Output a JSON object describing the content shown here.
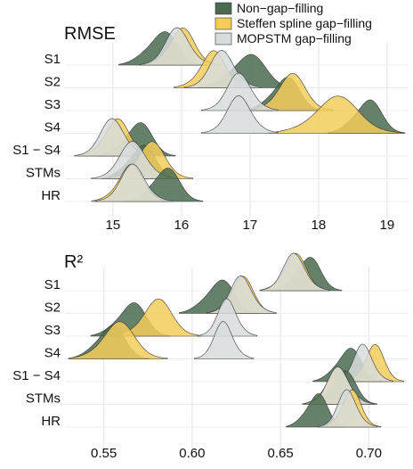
{
  "legend": {
    "placement": "top-right",
    "items": [
      {
        "label": "Non−gap−filling",
        "color": "#4a6b4f"
      },
      {
        "label": "Steffen spline gap−filling",
        "color": "#f3cc5c"
      },
      {
        "label": "MOPSTM gap−filling",
        "color": "#d7dcdc"
      }
    ]
  },
  "chart_data": [
    {
      "type": "ridgeline",
      "title": "RMSE",
      "categories": [
        "S1",
        "S2",
        "S3",
        "S4",
        "S1 − S4",
        "STMs",
        "HR"
      ],
      "xlim": [
        14.3,
        19.3
      ],
      "xticks": [
        15,
        16,
        17,
        18,
        19
      ],
      "xtick_labels": [
        "15",
        "16",
        "17",
        "18",
        "19"
      ],
      "grid": true,
      "series": [
        {
          "name": "Non−gap−filling",
          "color": "#4a6b4f",
          "modes": [
            15.7,
            16.95,
            17.5,
            18.7,
            15.35,
            15.4,
            15.75
          ],
          "spreads": [
            0.22,
            0.25,
            0.2,
            0.2,
            0.2,
            0.2,
            0.2
          ]
        },
        {
          "name": "Steffen spline gap−filling",
          "color": "#f3cc5c",
          "modes": [
            16.0,
            16.45,
            17.6,
            18.25,
            15.05,
            15.55,
            15.25
          ],
          "spreads": [
            0.2,
            0.2,
            0.22,
            0.35,
            0.2,
            0.22,
            0.2
          ]
        },
        {
          "name": "MOPSTM gap−filling",
          "color": "#d7dcdc",
          "modes": [
            15.95,
            16.6,
            16.85,
            16.85,
            15.0,
            15.3,
            15.3
          ],
          "spreads": [
            0.2,
            0.2,
            0.2,
            0.2,
            0.2,
            0.22,
            0.2
          ]
        }
      ]
    },
    {
      "type": "ridgeline",
      "title": "R²",
      "categories": [
        "S1",
        "S2",
        "S3",
        "S4",
        "S1 − S4",
        "STMs",
        "HR"
      ],
      "xlim": [
        0.528,
        0.722
      ],
      "xticks": [
        0.55,
        0.6,
        0.65,
        0.7
      ],
      "xtick_labels": [
        "0.55",
        "0.60",
        "0.65",
        "0.70"
      ],
      "grid": true,
      "series": [
        {
          "name": "Non−gap−filling",
          "color": "#4a6b4f",
          "modes": [
            0.665,
            0.615,
            0.565,
            0.553,
            0.688,
            0.685,
            0.67
          ],
          "spreads": [
            0.007,
            0.008,
            0.008,
            0.008,
            0.007,
            0.007,
            0.006
          ]
        },
        {
          "name": "Steffen spline gap−filling",
          "color": "#f3cc5c",
          "modes": [
            0.658,
            0.628,
            0.58,
            0.558,
            0.703,
            0.682,
            0.69
          ],
          "spreads": [
            0.007,
            0.007,
            0.009,
            0.01,
            0.006,
            0.007,
            0.006
          ]
        },
        {
          "name": "MOPSTM gap−filling",
          "color": "#d7dcdc",
          "modes": [
            0.658,
            0.628,
            0.62,
            0.618,
            0.697,
            0.683,
            0.688
          ],
          "spreads": [
            0.007,
            0.007,
            0.006,
            0.006,
            0.006,
            0.007,
            0.006
          ]
        }
      ]
    }
  ]
}
